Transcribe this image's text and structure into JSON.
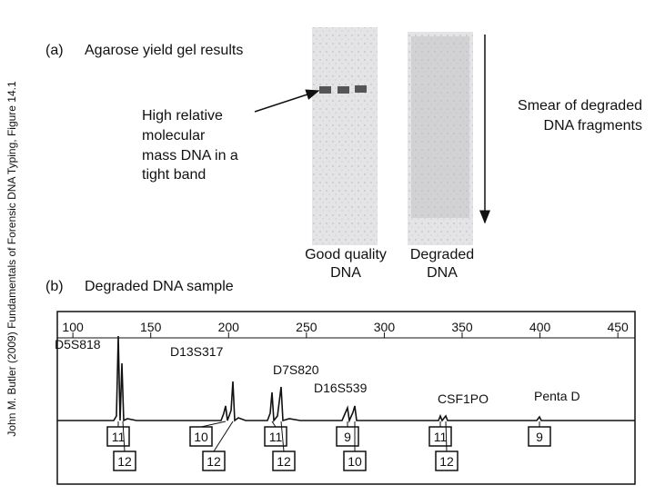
{
  "side_caption": "John M. Butler (2009) Fundamentals of Forensic DNA Typing, Figure 14.1",
  "panel_a": {
    "label": "(a)",
    "title": "Agarose yield gel results",
    "band_note": [
      "High relative",
      "molecular",
      "mass DNA in a",
      "tight band"
    ],
    "smear_note": [
      "Smear of degraded",
      "DNA fragments"
    ],
    "lanes": [
      [
        "Good quality",
        "DNA"
      ],
      [
        "Degraded",
        "DNA"
      ]
    ]
  },
  "panel_b": {
    "label": "(b)",
    "title": "Degraded DNA sample",
    "xlim": [
      90,
      461
    ],
    "xticks": [
      100,
      150,
      200,
      250,
      300,
      350,
      400,
      450
    ],
    "loci": [
      {
        "name": "D5S818",
        "alleles": [
          11,
          12
        ]
      },
      {
        "name": "D13S317",
        "alleles": [
          10,
          12
        ]
      },
      {
        "name": "D7S820",
        "alleles": [
          11,
          12
        ]
      },
      {
        "name": "D16S539",
        "alleles": [
          9,
          10
        ]
      },
      {
        "name": "CSF1PO",
        "alleles": [
          11,
          12
        ]
      },
      {
        "name": "Penta D",
        "alleles": [
          9
        ]
      }
    ]
  }
}
